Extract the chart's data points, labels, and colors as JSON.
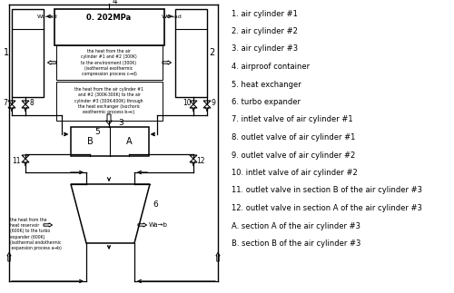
{
  "legend_items": [
    "1. air cylinder #1",
    "2. air cylinder #2",
    "3. air cylinder #3",
    "4. airproof container",
    "5. heat exchanger",
    "6. turbo expander",
    "7. intlet valve of air cylinder #1",
    "8. outlet valve of air cylinder #1",
    "9. outlet valve of air cylinder #2",
    "10. intlet valve of air cylinder #2",
    "11. outlet valve in section B of the air cylinder #3",
    "12. outlet valve in section A of the air cylinder #3",
    "A. section A of the air cylinder #3",
    "B. section B of the air cylinder #3"
  ],
  "pressure_label": "0. 202MPa",
  "heat_text1": "the heat from the air\ncylinder #1 and #2 (300K)\nto the environment (300K)\n(isothermal exothermic\ncompression process c→d)",
  "heat_text2": "the heat from the air cylinder #1\nand #2 (300K-300K) to the air\ncylinder #3 (300K-600K) through\nthe heat exchanger (isochoric\nexothermic process b→c)",
  "heat_text3": "the heat from the\nheat reservoir\n(600K) to the turbo\nexpander (600K)\n(isothermal endothermic\n expansion process a→b)",
  "Wc_ad_label": "Wc→ad",
  "Wa_ab_label": "Wa→b",
  "bg_color": "#ffffff"
}
